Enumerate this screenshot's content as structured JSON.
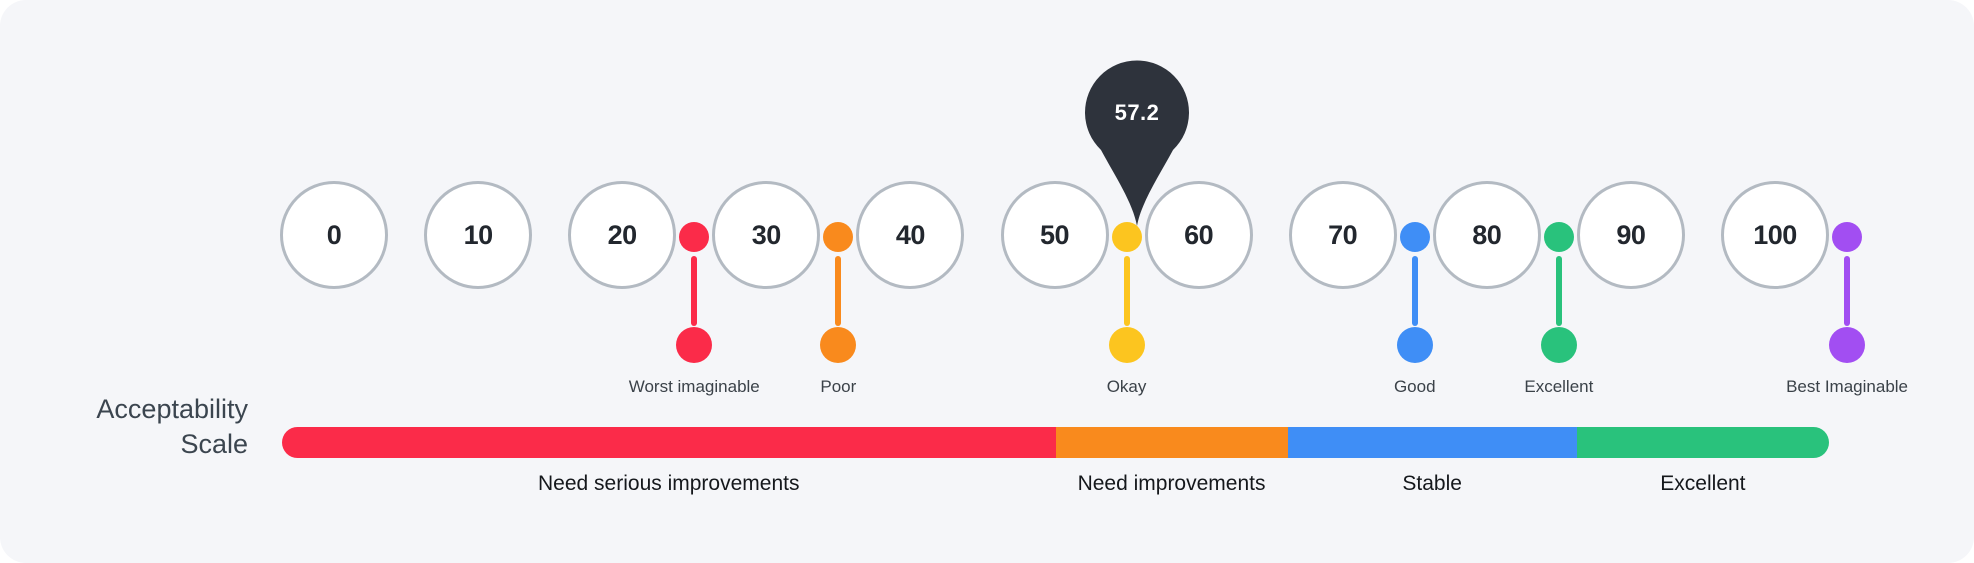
{
  "title": {
    "line1": "Acceptability",
    "line2": "Scale"
  },
  "score": {
    "value": "57.2"
  },
  "colors": {
    "background": "#f5f6f9",
    "circle_border": "#b3bac2",
    "balloon": "#2e333c",
    "red": "#fb2b49",
    "orange": "#f98a1d",
    "yellow": "#fcc51f",
    "blue": "#3f8ef6",
    "green": "#29c27c",
    "purple": "#a24ef2"
  },
  "chart_data": {
    "type": "gauge",
    "title": "Acceptability Scale",
    "score": 57.2,
    "axis_min": 0,
    "axis_max": 100,
    "tick_labels": [
      "0",
      "10",
      "20",
      "30",
      "40",
      "50",
      "60",
      "70",
      "80",
      "90",
      "100"
    ],
    "markers": [
      {
        "label": "Worst imaginable",
        "position": 25,
        "color": "#fb2b49"
      },
      {
        "label": "Poor",
        "position": 35,
        "color": "#f98a1d"
      },
      {
        "label": "Okay",
        "position": 55,
        "color": "#fcc51f"
      },
      {
        "label": "Good",
        "position": 75,
        "color": "#3f8ef6"
      },
      {
        "label": "Excellent",
        "position": 85,
        "color": "#29c27c"
      },
      {
        "label": "Best Imaginable",
        "position": 105,
        "color": "#a24ef2"
      }
    ],
    "bands": [
      {
        "label": "Need serious improvements",
        "color": "#fb2b49",
        "width_pct": 50.0
      },
      {
        "label": "Need improvements",
        "color": "#f98a1d",
        "width_pct": 15.0
      },
      {
        "label": "Stable",
        "color": "#3f8ef6",
        "width_pct": 18.7
      },
      {
        "label": "Excellent",
        "color": "#29c27c",
        "width_pct": 16.3
      }
    ]
  }
}
